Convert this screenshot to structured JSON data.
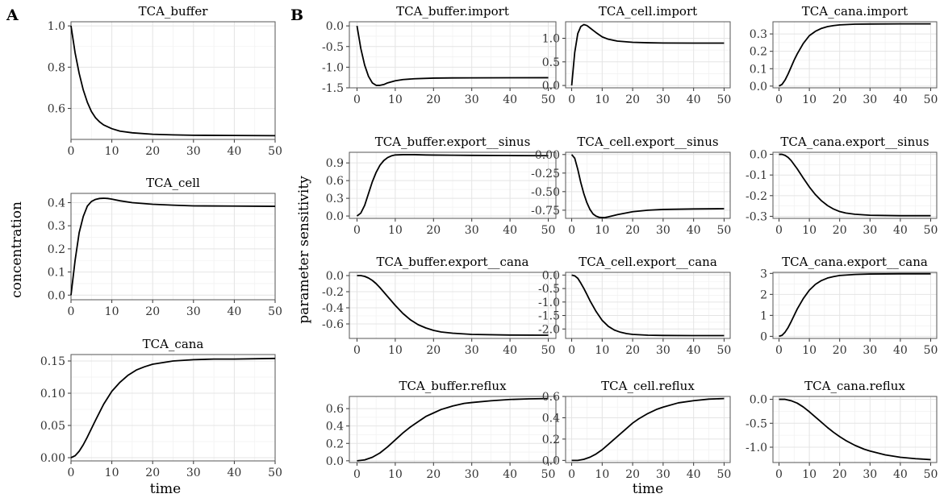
{
  "figure": {
    "panel_a_tag": "A",
    "panel_b_tag": "B",
    "a_ylabel": "concentration",
    "a_xlabel": "time",
    "b_ylabel": "parameter sensitivity",
    "b_xlabel": "time"
  },
  "chart_data": [
    {
      "type": "line",
      "title": "TCA_buffer",
      "xlim": [
        0,
        50
      ],
      "ylim": [
        0.45,
        1.02
      ],
      "xticks": [
        "0",
        "10",
        "20",
        "30",
        "40",
        "50"
      ],
      "xtick_values": [
        0,
        10,
        20,
        30,
        40,
        50
      ],
      "yticks": [
        "0.6",
        "0.8",
        "1.0"
      ],
      "ytick_values": [
        0.6,
        0.8,
        1.0
      ],
      "x": [
        0,
        1,
        2,
        3,
        4,
        5,
        6,
        7,
        8,
        10,
        12,
        15,
        20,
        25,
        30,
        40,
        50
      ],
      "y": [
        1.0,
        0.87,
        0.77,
        0.69,
        0.63,
        0.585,
        0.555,
        0.535,
        0.52,
        0.502,
        0.49,
        0.482,
        0.475,
        0.472,
        0.47,
        0.469,
        0.468
      ]
    },
    {
      "type": "line",
      "title": "TCA_cell",
      "xlim": [
        0,
        50
      ],
      "ylim": [
        -0.02,
        0.44
      ],
      "xticks": [
        "0",
        "10",
        "20",
        "30",
        "40",
        "50"
      ],
      "xtick_values": [
        0,
        10,
        20,
        30,
        40,
        50
      ],
      "yticks": [
        "0.0",
        "0.1",
        "0.2",
        "0.3",
        "0.4"
      ],
      "ytick_values": [
        0,
        0.1,
        0.2,
        0.3,
        0.4
      ],
      "x": [
        0,
        1,
        2,
        3,
        4,
        5,
        6,
        7,
        8,
        9,
        10,
        12,
        15,
        20,
        25,
        30,
        40,
        50
      ],
      "y": [
        0.0,
        0.15,
        0.27,
        0.34,
        0.385,
        0.405,
        0.414,
        0.418,
        0.419,
        0.418,
        0.415,
        0.408,
        0.4,
        0.393,
        0.389,
        0.386,
        0.385,
        0.384
      ]
    },
    {
      "type": "line",
      "title": "TCA_cana",
      "xlim": [
        0,
        50
      ],
      "ylim": [
        -0.005,
        0.16
      ],
      "xticks": [
        "0",
        "10",
        "20",
        "30",
        "40",
        "50"
      ],
      "xtick_values": [
        0,
        10,
        20,
        30,
        40,
        50
      ],
      "yticks": [
        "0.00",
        "0.05",
        "0.10",
        "0.15"
      ],
      "ytick_values": [
        0,
        0.05,
        0.1,
        0.15
      ],
      "x": [
        0,
        1,
        2,
        3,
        4,
        5,
        6,
        8,
        10,
        12,
        14,
        16,
        18,
        20,
        25,
        30,
        35,
        40,
        50
      ],
      "y": [
        0.0,
        0.003,
        0.01,
        0.02,
        0.032,
        0.045,
        0.058,
        0.083,
        0.103,
        0.117,
        0.128,
        0.136,
        0.141,
        0.145,
        0.15,
        0.152,
        0.153,
        0.153,
        0.154
      ]
    },
    {
      "type": "line",
      "title": "TCA_buffer.import",
      "xlim": [
        -2,
        52
      ],
      "ylim": [
        -1.5,
        0.1
      ],
      "xticks": [
        "0",
        "10",
        "20",
        "30",
        "40",
        "50"
      ],
      "xtick_values": [
        0,
        10,
        20,
        30,
        40,
        50
      ],
      "yticks": [
        "-1.5",
        "-1.0",
        "-0.5",
        "0.0"
      ],
      "ytick_values": [
        -1.5,
        -1.0,
        -0.5,
        0.0
      ],
      "x": [
        0,
        1,
        2,
        3,
        4,
        5,
        6,
        7,
        8,
        10,
        12,
        15,
        20,
        25,
        30,
        40,
        50
      ],
      "y": [
        0.0,
        -0.55,
        -0.95,
        -1.22,
        -1.38,
        -1.44,
        -1.44,
        -1.42,
        -1.38,
        -1.33,
        -1.3,
        -1.28,
        -1.265,
        -1.26,
        -1.258,
        -1.256,
        -1.255
      ]
    },
    {
      "type": "line",
      "title": "TCA_cell.import",
      "xlim": [
        -2,
        52
      ],
      "ylim": [
        -0.05,
        1.35
      ],
      "xticks": [
        "0",
        "10",
        "20",
        "30",
        "40",
        "50"
      ],
      "xtick_values": [
        0,
        10,
        20,
        30,
        40,
        50
      ],
      "yticks": [
        "0.0",
        "0.5",
        "1.0"
      ],
      "ytick_values": [
        0,
        0.5,
        1.0
      ],
      "x": [
        0,
        1,
        2,
        3,
        4,
        5,
        6,
        7,
        8,
        10,
        12,
        15,
        20,
        25,
        30,
        40,
        50
      ],
      "y": [
        0.0,
        0.7,
        1.1,
        1.25,
        1.29,
        1.27,
        1.22,
        1.17,
        1.12,
        1.03,
        0.98,
        0.94,
        0.915,
        0.905,
        0.9,
        0.898,
        0.897
      ]
    },
    {
      "type": "line",
      "title": "TCA_cana.import",
      "xlim": [
        -2,
        52
      ],
      "ylim": [
        -0.01,
        0.37
      ],
      "xticks": [
        "0",
        "10",
        "20",
        "30",
        "40",
        "50"
      ],
      "xtick_values": [
        0,
        10,
        20,
        30,
        40,
        50
      ],
      "yticks": [
        "0.0",
        "0.1",
        "0.2",
        "0.3"
      ],
      "ytick_values": [
        0,
        0.1,
        0.2,
        0.3
      ],
      "x": [
        0,
        1,
        2,
        3,
        4,
        5,
        6,
        8,
        10,
        12,
        14,
        16,
        18,
        20,
        25,
        30,
        40,
        50
      ],
      "y": [
        0.0,
        0.01,
        0.035,
        0.07,
        0.11,
        0.15,
        0.185,
        0.245,
        0.29,
        0.315,
        0.332,
        0.342,
        0.348,
        0.352,
        0.356,
        0.357,
        0.358,
        0.358
      ]
    },
    {
      "type": "line",
      "title": "TCA_buffer.export__sinus",
      "xlim": [
        -2,
        52
      ],
      "ylim": [
        -0.04,
        1.08
      ],
      "xticks": [
        "0",
        "10",
        "20",
        "30",
        "40",
        "50"
      ],
      "xtick_values": [
        0,
        10,
        20,
        30,
        40,
        50
      ],
      "yticks": [
        "0.0",
        "0.3",
        "0.6",
        "0.9"
      ],
      "ytick_values": [
        0,
        0.3,
        0.6,
        0.9
      ],
      "x": [
        0,
        1,
        2,
        3,
        4,
        5,
        6,
        7,
        8,
        9,
        10,
        12,
        15,
        18,
        20,
        25,
        30,
        40,
        50
      ],
      "y": [
        0.0,
        0.05,
        0.18,
        0.38,
        0.58,
        0.74,
        0.86,
        0.94,
        0.99,
        1.02,
        1.035,
        1.04,
        1.04,
        1.035,
        1.033,
        1.03,
        1.028,
        1.025,
        1.022
      ]
    },
    {
      "type": "line",
      "title": "TCA_cell.export__sinus",
      "xlim": [
        -2,
        52
      ],
      "ylim": [
        -0.86,
        0.03
      ],
      "xticks": [
        "0",
        "10",
        "20",
        "30",
        "40",
        "50"
      ],
      "xtick_values": [
        0,
        10,
        20,
        30,
        40,
        50
      ],
      "yticks": [
        "-0.75",
        "-0.50",
        "-0.25",
        "0.00"
      ],
      "ytick_values": [
        -0.75,
        -0.5,
        -0.25,
        0
      ],
      "x": [
        0,
        1,
        2,
        3,
        4,
        5,
        6,
        7,
        8,
        9,
        10,
        11,
        12,
        15,
        20,
        25,
        30,
        40,
        50
      ],
      "y": [
        0.0,
        -0.05,
        -0.2,
        -0.38,
        -0.53,
        -0.65,
        -0.74,
        -0.8,
        -0.83,
        -0.845,
        -0.85,
        -0.848,
        -0.84,
        -0.81,
        -0.77,
        -0.75,
        -0.74,
        -0.733,
        -0.73
      ]
    },
    {
      "type": "line",
      "title": "TCA_cana.export__sinus",
      "xlim": [
        -2,
        52
      ],
      "ylim": [
        -0.31,
        0.01
      ],
      "xticks": [
        "0",
        "10",
        "20",
        "30",
        "40",
        "50"
      ],
      "xtick_values": [
        0,
        10,
        20,
        30,
        40,
        50
      ],
      "yticks": [
        "-0.3",
        "-0.2",
        "-0.1",
        "0.0"
      ],
      "ytick_values": [
        -0.3,
        -0.2,
        -0.1,
        0
      ],
      "x": [
        0,
        1,
        2,
        3,
        4,
        5,
        6,
        8,
        10,
        12,
        14,
        16,
        18,
        20,
        22,
        25,
        30,
        40,
        50
      ],
      "y": [
        0.0,
        0.0,
        -0.005,
        -0.015,
        -0.03,
        -0.05,
        -0.07,
        -0.115,
        -0.158,
        -0.195,
        -0.225,
        -0.248,
        -0.265,
        -0.277,
        -0.284,
        -0.29,
        -0.295,
        -0.297,
        -0.297
      ]
    },
    {
      "type": "line",
      "title": "TCA_buffer.export__cana",
      "xlim": [
        -2,
        52
      ],
      "ylim": [
        -0.78,
        0.04
      ],
      "xticks": [
        "0",
        "10",
        "20",
        "30",
        "40",
        "50"
      ],
      "xtick_values": [
        0,
        10,
        20,
        30,
        40,
        50
      ],
      "yticks": [
        "-0.6",
        "-0.4",
        "-0.2",
        "0.0"
      ],
      "ytick_values": [
        -0.6,
        -0.4,
        -0.2,
        0
      ],
      "x": [
        0,
        1,
        2,
        3,
        4,
        5,
        6,
        8,
        10,
        12,
        14,
        16,
        18,
        20,
        22,
        25,
        30,
        40,
        50
      ],
      "y": [
        0.0,
        0.0,
        -0.01,
        -0.03,
        -0.06,
        -0.1,
        -0.15,
        -0.26,
        -0.37,
        -0.47,
        -0.55,
        -0.61,
        -0.65,
        -0.68,
        -0.7,
        -0.715,
        -0.73,
        -0.738,
        -0.74
      ]
    },
    {
      "type": "line",
      "title": "TCA_cell.export__cana",
      "xlim": [
        -2,
        52
      ],
      "ylim": [
        -2.35,
        0.1
      ],
      "xticks": [
        "0",
        "10",
        "20",
        "30",
        "40",
        "50"
      ],
      "xtick_values": [
        0,
        10,
        20,
        30,
        40,
        50
      ],
      "yticks": [
        "-2.0",
        "-1.5",
        "-1.0",
        "-0.5",
        "0.0"
      ],
      "ytick_values": [
        -2.0,
        -1.5,
        -1.0,
        -0.5,
        0
      ],
      "x": [
        0,
        1,
        2,
        3,
        4,
        5,
        6,
        8,
        10,
        12,
        14,
        16,
        18,
        20,
        25,
        30,
        40,
        50
      ],
      "y": [
        0.0,
        -0.03,
        -0.12,
        -0.3,
        -0.5,
        -0.72,
        -0.95,
        -1.35,
        -1.68,
        -1.9,
        -2.04,
        -2.12,
        -2.17,
        -2.2,
        -2.23,
        -2.24,
        -2.245,
        -2.245
      ]
    },
    {
      "type": "line",
      "title": "TCA_cana.export__cana",
      "xlim": [
        -2,
        52
      ],
      "ylim": [
        -0.1,
        3.05
      ],
      "xticks": [
        "0",
        "10",
        "20",
        "30",
        "40",
        "50"
      ],
      "xtick_values": [
        0,
        10,
        20,
        30,
        40,
        50
      ],
      "yticks": [
        "0",
        "1",
        "2",
        "3"
      ],
      "ytick_values": [
        0,
        1,
        2,
        3
      ],
      "x": [
        0,
        1,
        2,
        3,
        4,
        5,
        6,
        8,
        10,
        12,
        14,
        16,
        18,
        20,
        25,
        30,
        40,
        50
      ],
      "y": [
        0.0,
        0.05,
        0.2,
        0.42,
        0.7,
        1.0,
        1.3,
        1.8,
        2.2,
        2.48,
        2.66,
        2.78,
        2.85,
        2.9,
        2.95,
        2.97,
        2.98,
        2.98
      ]
    },
    {
      "type": "line",
      "title": "TCA_buffer.reflux",
      "xlim": [
        -2,
        52
      ],
      "ylim": [
        -0.02,
        0.74
      ],
      "xticks": [
        "0",
        "10",
        "20",
        "30",
        "40",
        "50"
      ],
      "xtick_values": [
        0,
        10,
        20,
        30,
        40,
        50
      ],
      "yticks": [
        "0.0",
        "0.2",
        "0.4",
        "0.6"
      ],
      "ytick_values": [
        0,
        0.2,
        0.4,
        0.6
      ],
      "x": [
        0,
        2,
        4,
        6,
        8,
        10,
        12,
        14,
        16,
        18,
        20,
        22,
        25,
        28,
        30,
        35,
        40,
        45,
        50
      ],
      "y": [
        0.0,
        0.01,
        0.04,
        0.09,
        0.16,
        0.24,
        0.32,
        0.39,
        0.45,
        0.51,
        0.55,
        0.59,
        0.63,
        0.66,
        0.67,
        0.69,
        0.705,
        0.712,
        0.716
      ]
    },
    {
      "type": "line",
      "title": "TCA_cell.reflux",
      "xlim": [
        -2,
        52
      ],
      "ylim": [
        -0.02,
        0.6
      ],
      "xticks": [
        "0",
        "10",
        "20",
        "30",
        "40",
        "50"
      ],
      "xtick_values": [
        0,
        10,
        20,
        30,
        40,
        50
      ],
      "yticks": [
        "0.0",
        "0.2",
        "0.4",
        "0.6"
      ],
      "ytick_values": [
        0,
        0.2,
        0.4,
        0.6
      ],
      "x": [
        0,
        2,
        4,
        6,
        8,
        10,
        12,
        14,
        16,
        18,
        20,
        22,
        25,
        28,
        30,
        35,
        40,
        45,
        50
      ],
      "y": [
        0.0,
        0.0,
        0.01,
        0.03,
        0.06,
        0.1,
        0.15,
        0.2,
        0.25,
        0.3,
        0.35,
        0.39,
        0.44,
        0.48,
        0.5,
        0.54,
        0.56,
        0.575,
        0.58
      ]
    },
    {
      "type": "line",
      "title": "TCA_cana.reflux",
      "xlim": [
        -2,
        52
      ],
      "ylim": [
        -1.32,
        0.06
      ],
      "xticks": [
        "0",
        "10",
        "20",
        "30",
        "40",
        "50"
      ],
      "xtick_values": [
        0,
        10,
        20,
        30,
        40,
        50
      ],
      "yticks": [
        "-1.0",
        "-0.5",
        "0.0"
      ],
      "ytick_values": [
        -1.0,
        -0.5,
        0
      ],
      "x": [
        0,
        2,
        4,
        6,
        8,
        10,
        12,
        14,
        16,
        18,
        20,
        22,
        25,
        28,
        30,
        35,
        40,
        45,
        50
      ],
      "y": [
        0.0,
        0.0,
        -0.03,
        -0.08,
        -0.16,
        -0.26,
        -0.37,
        -0.48,
        -0.59,
        -0.69,
        -0.78,
        -0.86,
        -0.96,
        -1.04,
        -1.08,
        -1.16,
        -1.21,
        -1.24,
        -1.26
      ]
    }
  ]
}
